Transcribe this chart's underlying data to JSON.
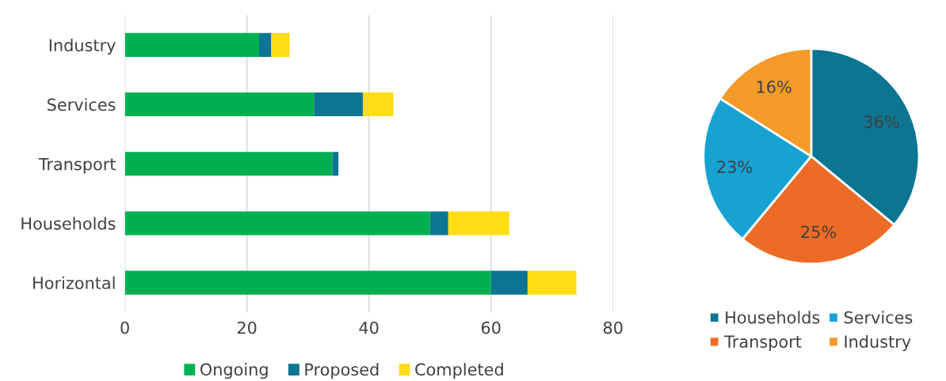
{
  "chart_data": [
    {
      "type": "bar",
      "orientation": "horizontal",
      "stacked": true,
      "categories": [
        "Industry",
        "Services",
        "Transport",
        "Households",
        "Horizontal"
      ],
      "series": [
        {
          "name": "Ongoing",
          "color": "#00b050",
          "values": [
            22,
            31,
            34,
            50,
            60
          ]
        },
        {
          "name": "Proposed",
          "color": "#0b7592",
          "values": [
            2,
            8,
            1,
            3,
            6
          ]
        },
        {
          "name": "Completed",
          "color": "#ffdd15",
          "values": [
            3,
            5,
            0,
            10,
            8
          ]
        }
      ],
      "xlim": [
        0,
        80
      ],
      "xticks": [
        0,
        20,
        40,
        60,
        80
      ],
      "grid": "x",
      "legend": "bottom"
    },
    {
      "type": "pie",
      "categories": [
        "Households",
        "Transport",
        "Services",
        "Industry"
      ],
      "values": [
        36,
        25,
        23,
        16
      ],
      "colors": [
        "#0b7592",
        "#ec6b27",
        "#16a3d3",
        "#f39a28"
      ],
      "value_labels": [
        "36%",
        "25%",
        "23%",
        "16%"
      ],
      "legend": "bottom"
    }
  ]
}
